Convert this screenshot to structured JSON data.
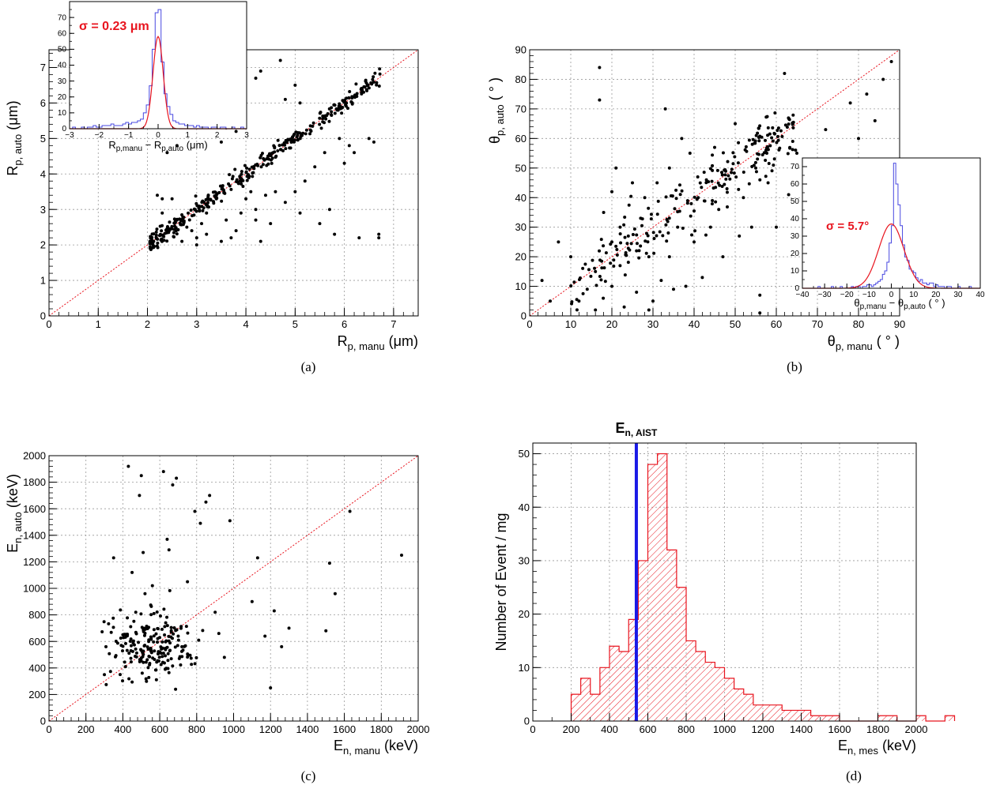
{
  "chart_data": [
    {
      "type": "scatter",
      "panel_caption": "(a)",
      "xlabel": {
        "main": "R",
        "sub": "p, manu",
        "unit": "(μm)"
      },
      "ylabel": {
        "main": "R",
        "sub": "p, auto",
        "unit": "(μm)"
      },
      "xlim": [
        0,
        7.5
      ],
      "ylim": [
        0,
        7.5
      ],
      "xticks": [
        0,
        1,
        2,
        3,
        4,
        5,
        6,
        7
      ],
      "yticks": [
        0,
        1,
        2,
        3,
        4,
        5,
        6,
        7
      ],
      "grid": true,
      "reference_line": "y = x",
      "points": [
        [
          2.2,
          3.4
        ],
        [
          2.3,
          3.3
        ],
        [
          2.3,
          2.9
        ],
        [
          2.5,
          3.3
        ],
        [
          2.6,
          2.7
        ],
        [
          2.7,
          2.1
        ],
        [
          2.8,
          2.5
        ],
        [
          2.9,
          2.4
        ],
        [
          3.0,
          2.2
        ],
        [
          3.1,
          2.6
        ],
        [
          3.0,
          2.0
        ],
        [
          3.2,
          2.3
        ],
        [
          3.2,
          2.9
        ],
        [
          3.4,
          3.3
        ],
        [
          3.5,
          2.1
        ],
        [
          3.6,
          2.7
        ],
        [
          3.7,
          2.2
        ],
        [
          3.8,
          2.4
        ],
        [
          3.9,
          2.9
        ],
        [
          4.0,
          3.3
        ],
        [
          4.1,
          3.5
        ],
        [
          4.2,
          2.7
        ],
        [
          4.2,
          3.0
        ],
        [
          4.3,
          2.1
        ],
        [
          4.4,
          3.4
        ],
        [
          4.5,
          2.6
        ],
        [
          4.6,
          3.5
        ],
        [
          4.8,
          3.2
        ],
        [
          5.0,
          3.5
        ],
        [
          5.1,
          2.9
        ],
        [
          5.2,
          3.8
        ],
        [
          5.4,
          4.2
        ],
        [
          5.5,
          2.6
        ],
        [
          5.6,
          4.6
        ],
        [
          5.7,
          3.0
        ],
        [
          5.8,
          2.3
        ],
        [
          5.9,
          5.0
        ],
        [
          6.0,
          4.3
        ],
        [
          6.1,
          4.8
        ],
        [
          6.2,
          4.6
        ],
        [
          6.3,
          2.2
        ],
        [
          6.5,
          5.0
        ],
        [
          6.6,
          4.9
        ],
        [
          6.7,
          2.3
        ],
        [
          6.7,
          2.2
        ],
        [
          2.4,
          4.6
        ],
        [
          2.6,
          4.8
        ],
        [
          3.5,
          4.9
        ],
        [
          3.6,
          5.3
        ],
        [
          3.8,
          5.2
        ],
        [
          4.2,
          6.7
        ],
        [
          4.3,
          6.9
        ],
        [
          4.7,
          7.2
        ],
        [
          4.8,
          6.1
        ],
        [
          5.0,
          6.5
        ],
        [
          5.1,
          6.0
        ]
      ],
      "inset": {
        "type": "histogram",
        "xlabel": {
          "part1": "R",
          "sub1": "p,manu",
          "mid": " − R",
          "sub2": "p,auto",
          "unit": " (μm)"
        },
        "xlim": [
          -3,
          3
        ],
        "ylim": [
          0,
          80
        ],
        "xticks": [
          -3,
          -2,
          -1,
          0,
          1,
          2,
          3
        ],
        "yticks": [
          0,
          10,
          20,
          30,
          40,
          50,
          60,
          70
        ],
        "annotation": "σ = 0.23 μm",
        "sigma": 0.23,
        "fit_peak": 58,
        "bin_width": 0.1,
        "bin_start": -3.0,
        "counts": [
          0,
          1,
          0,
          0,
          1,
          0,
          1,
          1,
          2,
          1,
          1,
          2,
          2,
          2,
          3,
          2,
          2,
          2,
          3,
          4,
          3,
          4,
          4,
          5,
          6,
          10,
          15,
          27,
          50,
          73,
          75,
          42,
          22,
          14,
          9,
          5,
          4,
          3,
          3,
          2,
          2,
          2,
          1,
          2,
          1,
          1,
          1,
          0,
          1,
          1,
          0,
          1,
          1,
          0,
          0,
          1,
          0,
          0,
          1,
          0
        ]
      }
    },
    {
      "type": "scatter",
      "panel_caption": "(b)",
      "xlabel": {
        "main": "θ",
        "sub": "p, manu",
        "unit": "( ° )"
      },
      "ylabel": {
        "main": "θ",
        "sub": "p, auto",
        "unit": "( ° )"
      },
      "xlim": [
        0,
        90
      ],
      "ylim": [
        0,
        90
      ],
      "xticks": [
        0,
        10,
        20,
        30,
        40,
        50,
        60,
        70,
        80,
        90
      ],
      "yticks": [
        0,
        10,
        20,
        30,
        40,
        50,
        60,
        70,
        80,
        90
      ],
      "grid": true,
      "reference_line": "y = x",
      "points": [
        [
          3,
          12
        ],
        [
          5,
          5
        ],
        [
          7,
          25
        ],
        [
          10,
          20
        ],
        [
          12,
          5
        ],
        [
          14,
          9
        ],
        [
          16,
          2
        ],
        [
          16,
          15
        ],
        [
          17,
          84
        ],
        [
          17,
          73
        ],
        [
          18,
          35
        ],
        [
          20,
          42
        ],
        [
          20,
          25
        ],
        [
          20,
          10
        ],
        [
          21,
          50
        ],
        [
          22,
          17
        ],
        [
          22,
          30
        ],
        [
          23,
          3
        ],
        [
          24,
          27
        ],
        [
          25,
          45
        ],
        [
          26,
          22
        ],
        [
          26,
          8
        ],
        [
          27,
          33
        ],
        [
          28,
          40
        ],
        [
          29,
          2
        ],
        [
          29,
          20
        ],
        [
          30,
          5
        ],
        [
          31,
          45
        ],
        [
          32,
          12
        ],
        [
          33,
          70
        ],
        [
          34,
          20
        ],
        [
          34,
          50
        ],
        [
          35,
          9
        ],
        [
          36,
          30
        ],
        [
          37,
          60
        ],
        [
          38,
          10
        ],
        [
          39,
          55
        ],
        [
          40,
          25
        ],
        [
          41,
          40
        ],
        [
          42,
          13
        ],
        [
          43,
          46
        ],
        [
          44,
          30
        ],
        [
          45,
          57
        ],
        [
          46,
          36
        ],
        [
          47,
          20
        ],
        [
          48,
          43
        ],
        [
          50,
          65
        ],
        [
          51,
          27
        ],
        [
          52,
          40
        ],
        [
          54,
          30
        ],
        [
          55,
          50
        ],
        [
          56,
          7
        ],
        [
          56,
          1
        ],
        [
          58,
          45
        ],
        [
          60,
          30
        ],
        [
          62,
          82
        ],
        [
          63,
          41
        ],
        [
          64,
          65
        ],
        [
          65,
          55
        ],
        [
          68,
          35
        ],
        [
          70,
          50
        ],
        [
          72,
          63
        ],
        [
          74,
          20
        ],
        [
          75,
          35
        ],
        [
          78,
          72
        ],
        [
          80,
          60
        ],
        [
          82,
          75
        ],
        [
          84,
          66
        ],
        [
          86,
          80
        ],
        [
          88,
          86
        ]
      ],
      "inset": {
        "type": "histogram",
        "xlabel": {
          "part1": "θ",
          "sub1": "p,manu",
          "mid": " − θ",
          "sub2": "p,auto",
          "unit": " ( ° )"
        },
        "xlim": [
          -40,
          40
        ],
        "ylim": [
          0,
          75
        ],
        "xticks": [
          -40,
          -30,
          -20,
          -10,
          0,
          10,
          20,
          30,
          40
        ],
        "yticks": [
          0,
          10,
          20,
          30,
          40,
          50,
          60,
          70
        ],
        "annotation": "σ = 5.7°",
        "sigma": 5.7,
        "fit_peak": 37,
        "bin_width": 1,
        "bin_start": -40,
        "counts": [
          0,
          0,
          0,
          0,
          0,
          0,
          0,
          1,
          0,
          0,
          0,
          0,
          0,
          1,
          0,
          0,
          0,
          1,
          0,
          0,
          0,
          0,
          1,
          0,
          1,
          1,
          0,
          1,
          1,
          2,
          2,
          1,
          2,
          3,
          4,
          5,
          8,
          10,
          15,
          26,
          36,
          72,
          60,
          48,
          36,
          25,
          18,
          16,
          11,
          10,
          9,
          6,
          4,
          5,
          3,
          3,
          2,
          3,
          3,
          1,
          2,
          1,
          1,
          1,
          0,
          1,
          1,
          0,
          0,
          0,
          1,
          0,
          0,
          0,
          0,
          1,
          0,
          0,
          0,
          0
        ]
      }
    },
    {
      "type": "scatter",
      "panel_caption": "(c)",
      "xlabel": {
        "main": "E",
        "sub": "n, manu",
        "unit": "(keV)"
      },
      "ylabel": {
        "main": "E",
        "sub": "n, auto",
        "unit": "(keV)"
      },
      "xlim": [
        0,
        2000
      ],
      "ylim": [
        0,
        2000
      ],
      "xticks": [
        0,
        200,
        400,
        600,
        800,
        1000,
        1200,
        1400,
        1600,
        1800,
        2000
      ],
      "yticks": [
        0,
        200,
        400,
        600,
        800,
        1000,
        1200,
        1400,
        1600,
        1800,
        2000
      ],
      "grid": true,
      "reference_line": "y = x",
      "points": [
        [
          300,
          350
        ],
        [
          350,
          1230
        ],
        [
          400,
          650
        ],
        [
          430,
          1920
        ],
        [
          450,
          1120
        ],
        [
          470,
          820
        ],
        [
          490,
          1700
        ],
        [
          500,
          1850
        ],
        [
          510,
          1270
        ],
        [
          520,
          960
        ],
        [
          540,
          600
        ],
        [
          560,
          1020
        ],
        [
          600,
          520
        ],
        [
          620,
          1880
        ],
        [
          640,
          1370
        ],
        [
          650,
          1290
        ],
        [
          670,
          1780
        ],
        [
          690,
          1830
        ],
        [
          700,
          640
        ],
        [
          720,
          560
        ],
        [
          750,
          1050
        ],
        [
          790,
          1580
        ],
        [
          820,
          1490
        ],
        [
          850,
          1650
        ],
        [
          870,
          1700
        ],
        [
          900,
          820
        ],
        [
          920,
          660
        ],
        [
          950,
          480
        ],
        [
          980,
          1510
        ],
        [
          1100,
          900
        ],
        [
          1130,
          1230
        ],
        [
          1170,
          640
        ],
        [
          1200,
          250
        ],
        [
          1220,
          830
        ],
        [
          1260,
          560
        ],
        [
          1300,
          700
        ],
        [
          1500,
          680
        ],
        [
          1520,
          1190
        ],
        [
          1550,
          960
        ],
        [
          1630,
          1580
        ],
        [
          1910,
          1250
        ]
      ],
      "dense_cluster": {
        "center": [
          560,
          560
        ],
        "spread": [
          110,
          130
        ],
        "count": 200
      }
    },
    {
      "type": "histogram",
      "panel_caption": "(d)",
      "xlabel": {
        "main": "E",
        "sub": "n, mes",
        "unit": "(keV)"
      },
      "ylabel": "Number of Event / mg",
      "xlim": [
        0,
        2000
      ],
      "ylim": [
        0,
        52
      ],
      "xticks": [
        0,
        200,
        400,
        600,
        800,
        1000,
        1200,
        1400,
        1600,
        1800,
        2000
      ],
      "yticks": [
        0,
        10,
        20,
        30,
        40,
        50
      ],
      "grid": true,
      "bin_width": 50,
      "bin_start": 200,
      "counts": [
        5,
        8,
        5,
        10,
        14,
        13,
        19,
        30,
        48,
        50,
        32,
        25,
        15,
        13,
        11,
        10,
        8,
        6,
        5,
        3,
        3,
        3,
        2,
        2,
        2,
        1,
        1,
        1,
        0,
        0,
        0,
        0,
        1,
        1,
        0,
        0,
        1,
        0,
        0,
        1
      ],
      "marker_line": {
        "x": 540,
        "label_main": "E",
        "label_sub": "n, AIST",
        "color": "#1a1ae6"
      }
    }
  ]
}
